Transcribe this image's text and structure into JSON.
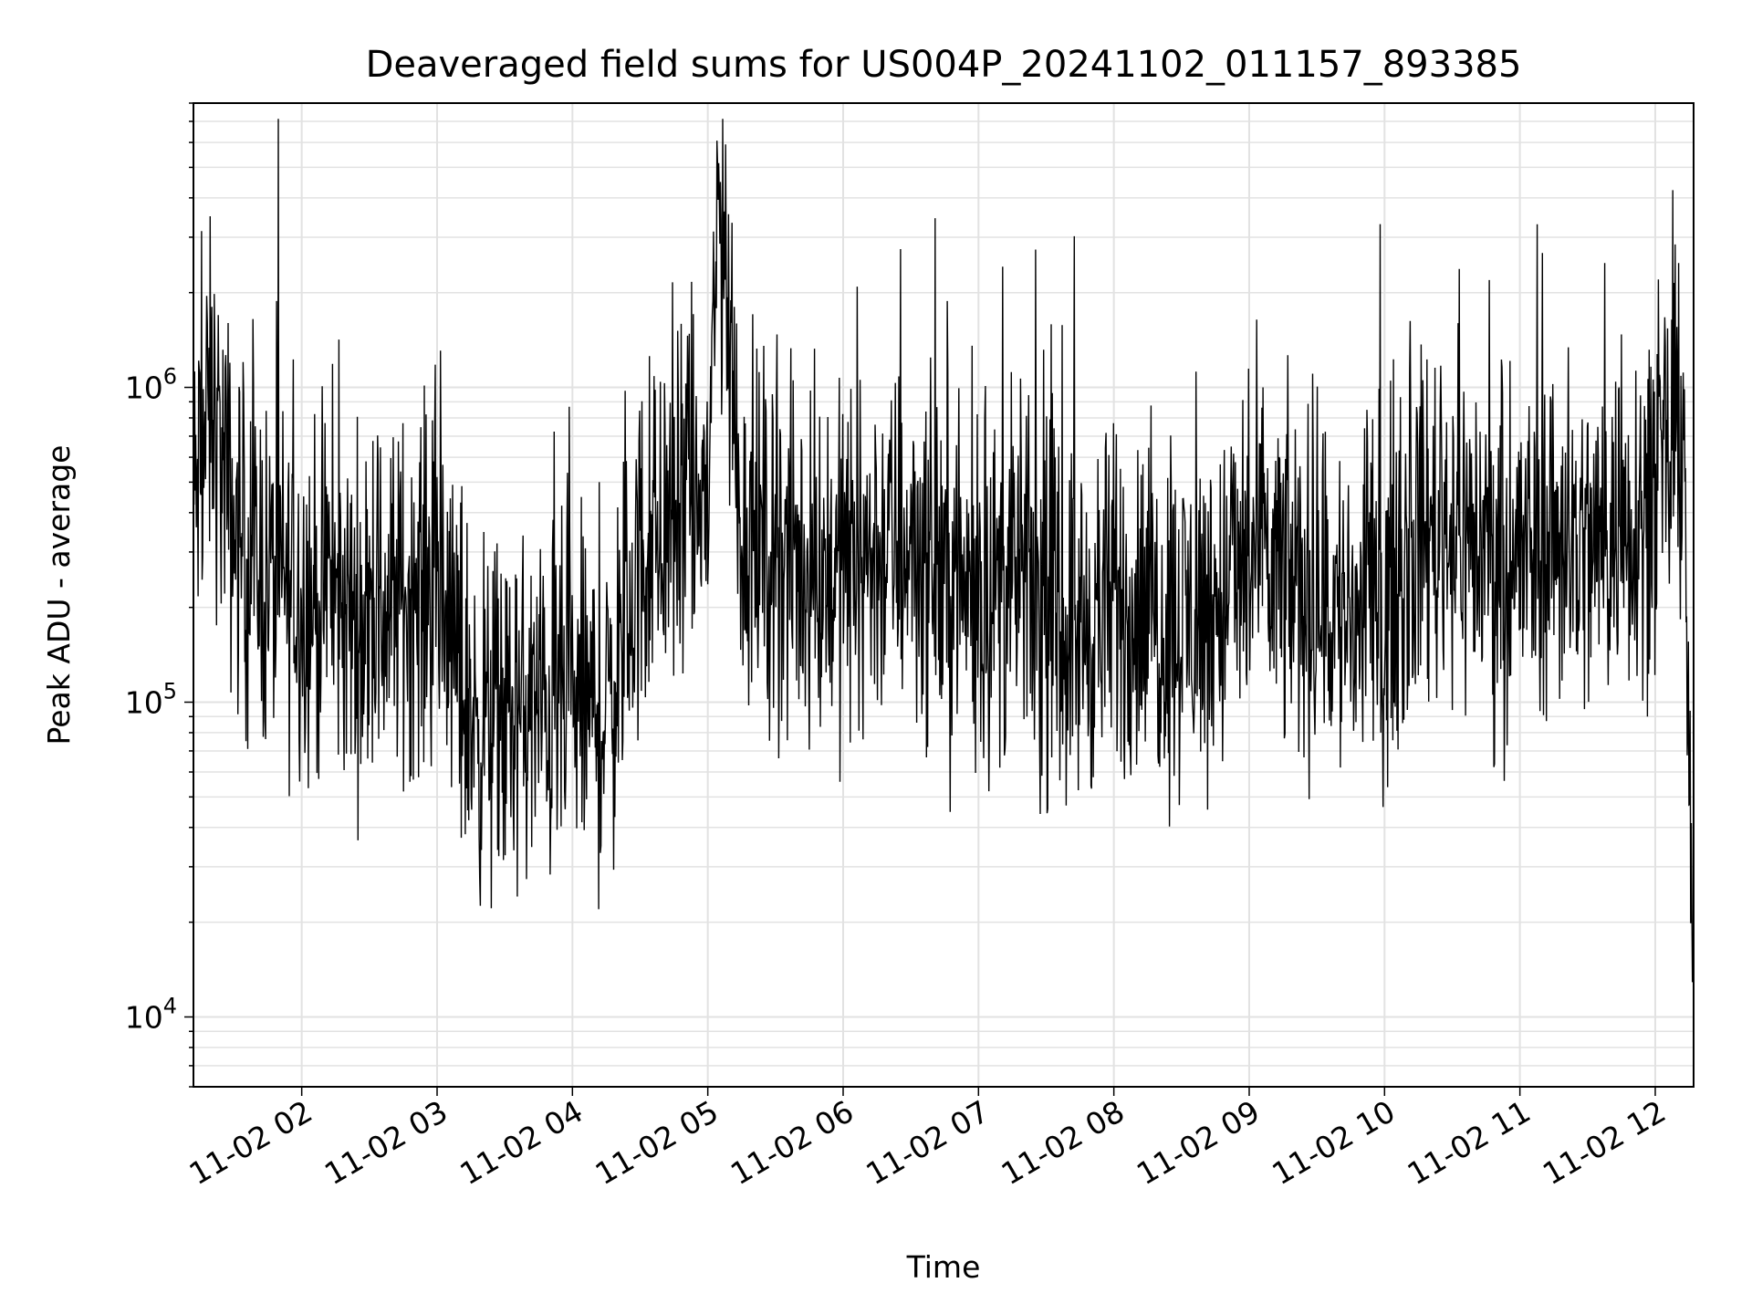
{
  "chart_data": {
    "type": "line",
    "title": "Deaveraged field sums for US004P_20241102_011157_893385",
    "xlabel": "Time",
    "ylabel": "Peak ADU - average",
    "yscale": "log",
    "ylim": [
      6000,
      8000000
    ],
    "xlim": [
      "2024-11-02 01:12",
      "2024-11-02 12:17"
    ],
    "grid": true,
    "x_ticks": [
      "11-02 02",
      "11-02 03",
      "11-02 04",
      "11-02 05",
      "11-02 06",
      "11-02 07",
      "11-02 08",
      "11-02 09",
      "11-02 10",
      "11-02 11",
      "11-02 12"
    ],
    "y_ticks": [
      {
        "base": "10",
        "exp": "4",
        "value": 10000
      },
      {
        "base": "10",
        "exp": "5",
        "value": 100000
      },
      {
        "base": "10",
        "exp": "6",
        "value": 1000000
      }
    ],
    "line_color": "#000000",
    "series": [
      {
        "name": "",
        "x": [
          "2024-11-02 01:12",
          "2024-11-02 01:20",
          "2024-11-02 01:30",
          "2024-11-02 01:45",
          "2024-11-02 02:00",
          "2024-11-02 02:15",
          "2024-11-02 02:30",
          "2024-11-02 02:45",
          "2024-11-02 03:00",
          "2024-11-02 03:15",
          "2024-11-02 03:30",
          "2024-11-02 03:45",
          "2024-11-02 04:00",
          "2024-11-02 04:15",
          "2024-11-02 04:30",
          "2024-11-02 04:45",
          "2024-11-02 05:00",
          "2024-11-02 05:05",
          "2024-11-02 05:15",
          "2024-11-02 05:30",
          "2024-11-02 05:45",
          "2024-11-02 06:00",
          "2024-11-02 06:15",
          "2024-11-02 06:30",
          "2024-11-02 06:45",
          "2024-11-02 07:00",
          "2024-11-02 07:20",
          "2024-11-02 07:30",
          "2024-11-02 07:45",
          "2024-11-02 08:00",
          "2024-11-02 08:15",
          "2024-11-02 08:30",
          "2024-11-02 08:45",
          "2024-11-02 09:00",
          "2024-11-02 09:15",
          "2024-11-02 09:30",
          "2024-11-02 09:45",
          "2024-11-02 10:00",
          "2024-11-02 10:15",
          "2024-11-02 10:30",
          "2024-11-02 10:45",
          "2024-11-02 11:00",
          "2024-11-02 11:15",
          "2024-11-02 11:30",
          "2024-11-02 11:45",
          "2024-11-02 12:00",
          "2024-11-02 12:08",
          "2024-11-02 12:13",
          "2024-11-02 12:15",
          "2024-11-02 12:17"
        ],
        "y": [
          400000,
          900000,
          350000,
          250000,
          220000,
          200000,
          180000,
          220000,
          240000,
          90000,
          85000,
          95000,
          100000,
          90000,
          280000,
          380000,
          450000,
          4000000,
          350000,
          300000,
          250000,
          280000,
          300000,
          320000,
          250000,
          220000,
          250000,
          180000,
          170000,
          200000,
          190000,
          180000,
          200000,
          280000,
          250000,
          210000,
          180000,
          200000,
          350000,
          380000,
          300000,
          280000,
          350000,
          300000,
          380000,
          450000,
          650000,
          900000,
          40000,
          15000
        ]
      }
    ]
  }
}
